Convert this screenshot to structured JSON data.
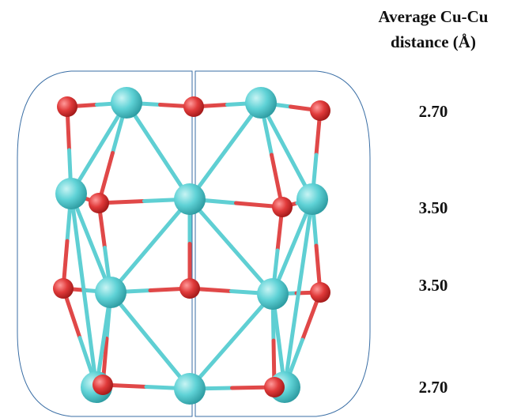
{
  "header": {
    "title_lines": [
      "Average Cu-Cu",
      "distance (Å)"
    ]
  },
  "distances": [
    "2.70",
    "3.50",
    "3.50",
    "2.70"
  ]
}
